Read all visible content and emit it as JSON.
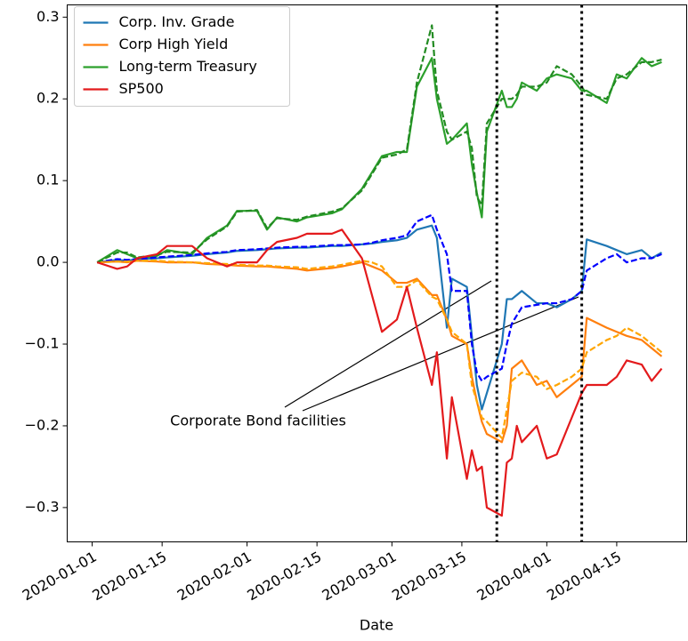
{
  "chart_data": {
    "type": "line",
    "xlabel": "Date",
    "x": [
      "2020-01-02",
      "2020-01-06",
      "2020-01-08",
      "2020-01-10",
      "2020-01-14",
      "2020-01-16",
      "2020-01-21",
      "2020-01-24",
      "2020-01-28",
      "2020-01-30",
      "2020-02-03",
      "2020-02-05",
      "2020-02-07",
      "2020-02-11",
      "2020-02-13",
      "2020-02-18",
      "2020-02-20",
      "2020-02-24",
      "2020-02-26",
      "2020-02-28",
      "2020-03-02",
      "2020-03-04",
      "2020-03-06",
      "2020-03-09",
      "2020-03-10",
      "2020-03-12",
      "2020-03-13",
      "2020-03-16",
      "2020-03-17",
      "2020-03-18",
      "2020-03-19",
      "2020-03-20",
      "2020-03-23",
      "2020-03-24",
      "2020-03-25",
      "2020-03-26",
      "2020-03-27",
      "2020-03-30",
      "2020-04-01",
      "2020-04-03",
      "2020-04-06",
      "2020-04-08",
      "2020-04-09",
      "2020-04-13",
      "2020-04-15",
      "2020-04-17",
      "2020-04-20",
      "2020-04-22",
      "2020-04-24"
    ],
    "series": [
      {
        "name": "Corp. Inv. Grade",
        "color": "#1f77b4",
        "values": [
          0,
          0.003,
          0.002,
          0.004,
          0.005,
          0.006,
          0.008,
          0.01,
          0.012,
          0.014,
          0.015,
          0.016,
          0.017,
          0.018,
          0.018,
          0.02,
          0.02,
          0.022,
          0.023,
          0.025,
          0.027,
          0.03,
          0.04,
          0.045,
          0.03,
          -0.08,
          -0.02,
          -0.03,
          -0.09,
          -0.15,
          -0.18,
          -0.16,
          -0.1,
          -0.045,
          -0.045,
          -0.04,
          -0.035,
          -0.05,
          -0.05,
          -0.055,
          -0.045,
          -0.035,
          0.028,
          0.02,
          0.015,
          0.01,
          0.015,
          0.005,
          0.012
        ]
      },
      {
        "name": "Corp High Yield",
        "color": "#ff7f0e",
        "values": [
          0,
          0.001,
          0.0,
          0.002,
          0.001,
          0.0,
          0.0,
          -0.002,
          -0.003,
          -0.004,
          -0.005,
          -0.005,
          -0.006,
          -0.008,
          -0.01,
          -0.007,
          -0.005,
          0.0,
          -0.005,
          -0.01,
          -0.025,
          -0.025,
          -0.02,
          -0.04,
          -0.04,
          -0.07,
          -0.09,
          -0.1,
          -0.14,
          -0.17,
          -0.195,
          -0.21,
          -0.22,
          -0.2,
          -0.13,
          -0.125,
          -0.12,
          -0.15,
          -0.145,
          -0.165,
          -0.15,
          -0.14,
          -0.068,
          -0.08,
          -0.085,
          -0.09,
          -0.095,
          -0.105,
          -0.115
        ]
      },
      {
        "name": "Long-term Treasury",
        "color": "#2ca02c",
        "values": [
          0,
          0.015,
          0.01,
          0.005,
          0.008,
          0.015,
          0.01,
          0.03,
          0.045,
          0.063,
          0.063,
          0.04,
          0.055,
          0.05,
          0.055,
          0.06,
          0.065,
          0.09,
          0.11,
          0.13,
          0.135,
          0.135,
          0.215,
          0.25,
          0.2,
          0.145,
          0.15,
          0.17,
          0.12,
          0.085,
          0.055,
          0.16,
          0.21,
          0.19,
          0.19,
          0.2,
          0.22,
          0.21,
          0.225,
          0.23,
          0.225,
          0.21,
          0.21,
          0.195,
          0.23,
          0.225,
          0.25,
          0.24,
          0.245
        ]
      },
      {
        "name": "SP500",
        "color": "#e31a1c",
        "values": [
          0,
          -0.008,
          -0.005,
          0.005,
          0.01,
          0.02,
          0.02,
          0.005,
          -0.005,
          0.0,
          0.0,
          0.015,
          0.025,
          0.03,
          0.035,
          0.035,
          0.04,
          0.005,
          -0.04,
          -0.085,
          -0.07,
          -0.03,
          -0.08,
          -0.15,
          -0.11,
          -0.24,
          -0.165,
          -0.265,
          -0.23,
          -0.255,
          -0.25,
          -0.3,
          -0.31,
          -0.245,
          -0.24,
          -0.2,
          -0.22,
          -0.2,
          -0.24,
          -0.235,
          -0.19,
          -0.16,
          -0.15,
          -0.15,
          -0.14,
          -0.12,
          -0.125,
          -0.145,
          -0.13
        ]
      },
      {
        "color": "#0000ff",
        "dashed": true,
        "values": [
          0,
          0.004,
          0.003,
          0.004,
          0.006,
          0.007,
          0.009,
          0.011,
          0.013,
          0.015,
          0.016,
          0.017,
          0.018,
          0.019,
          0.019,
          0.021,
          0.021,
          0.022,
          0.024,
          0.027,
          0.03,
          0.033,
          0.05,
          0.058,
          0.04,
          0.01,
          -0.035,
          -0.035,
          -0.1,
          -0.135,
          -0.145,
          -0.14,
          -0.13,
          -0.1,
          -0.075,
          -0.065,
          -0.055,
          -0.052,
          -0.05,
          -0.05,
          -0.045,
          -0.035,
          -0.01,
          0.005,
          0.01,
          0.0,
          0.005,
          0.005,
          0.01
        ]
      },
      {
        "color": "#ffa500",
        "dashed": true,
        "values": [
          0,
          0.001,
          0.001,
          0.002,
          0.002,
          0.001,
          0.0,
          -0.001,
          -0.002,
          -0.003,
          -0.004,
          -0.004,
          -0.005,
          -0.006,
          -0.008,
          -0.005,
          -0.003,
          0.002,
          0.0,
          -0.005,
          -0.03,
          -0.03,
          -0.022,
          -0.042,
          -0.045,
          -0.07,
          -0.085,
          -0.1,
          -0.15,
          -0.17,
          -0.19,
          -0.195,
          -0.215,
          -0.18,
          -0.145,
          -0.14,
          -0.135,
          -0.14,
          -0.155,
          -0.15,
          -0.14,
          -0.13,
          -0.11,
          -0.095,
          -0.09,
          -0.08,
          -0.09,
          -0.1,
          -0.11
        ]
      },
      {
        "color": "#228b22",
        "dashed": true,
        "values": [
          0,
          0.012,
          0.012,
          0.006,
          0.009,
          0.013,
          0.012,
          0.028,
          0.044,
          0.062,
          0.064,
          0.042,
          0.054,
          0.052,
          0.056,
          0.062,
          0.066,
          0.088,
          0.108,
          0.128,
          0.132,
          0.138,
          0.22,
          0.29,
          0.21,
          0.16,
          0.15,
          0.16,
          0.14,
          0.08,
          0.07,
          0.17,
          0.2,
          0.2,
          0.2,
          0.205,
          0.215,
          0.215,
          0.22,
          0.24,
          0.23,
          0.215,
          0.205,
          0.2,
          0.225,
          0.23,
          0.245,
          0.245,
          0.248
        ]
      }
    ],
    "xlim": [
      "2019-12-27",
      "2020-04-29"
    ],
    "xticks": [
      "2020-01-01",
      "2020-01-15",
      "2020-02-01",
      "2020-02-15",
      "2020-03-01",
      "2020-03-15",
      "2020-04-01",
      "2020-04-15"
    ],
    "ylim": [
      -0.342,
      0.315
    ],
    "yticks": [
      {
        "value": -0.3,
        "label": "−0.3"
      },
      {
        "value": -0.2,
        "label": "−0.2"
      },
      {
        "value": -0.1,
        "label": "−0.1"
      },
      {
        "value": 0,
        "label": "0.0"
      },
      0.1,
      0.2,
      0.3
    ],
    "vlines": [
      "2020-03-22",
      "2020-04-08"
    ],
    "annotation": "Corporate Bond facilities",
    "legend": "upper left"
  }
}
